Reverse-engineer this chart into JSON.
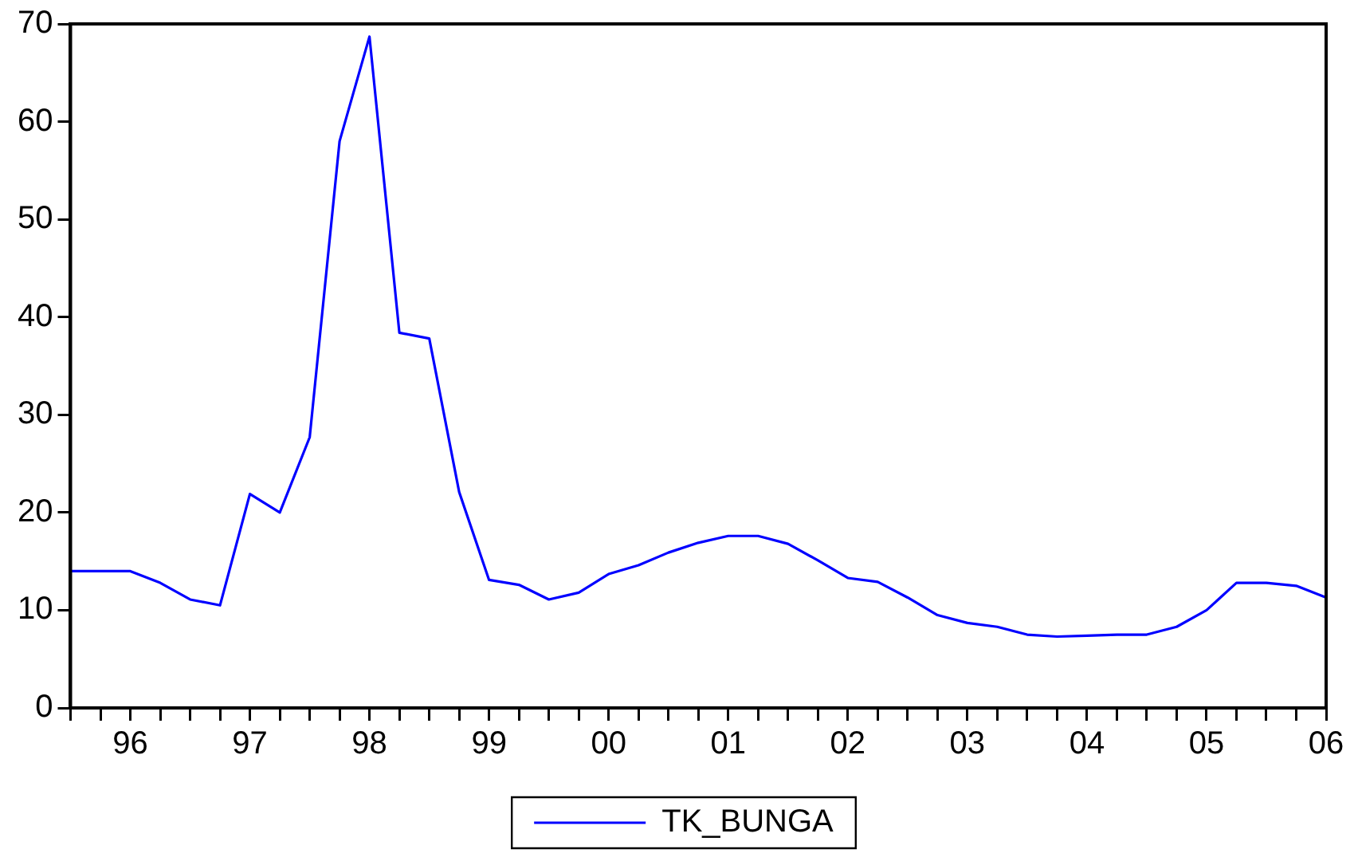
{
  "chart_data": {
    "type": "line",
    "categories": [
      null,
      null,
      "96",
      null,
      null,
      null,
      "97",
      null,
      null,
      null,
      "98",
      null,
      null,
      null,
      "99",
      null,
      null,
      null,
      "00",
      null,
      null,
      null,
      "01",
      null,
      null,
      null,
      "02",
      null,
      null,
      null,
      "03",
      null,
      null,
      null,
      "04",
      null,
      null,
      null,
      "05",
      null,
      null,
      null,
      "06"
    ],
    "series": [
      {
        "name": "TK_BUNGA",
        "color": "#0000ff",
        "values": [
          14.0,
          14.0,
          14.0,
          12.8,
          11.1,
          10.5,
          21.9,
          20.0,
          27.7,
          58.0,
          68.7,
          38.4,
          37.8,
          22.1,
          13.1,
          12.6,
          11.1,
          11.8,
          13.7,
          14.6,
          15.9,
          16.9,
          17.6,
          17.6,
          16.8,
          15.1,
          13.3,
          12.9,
          11.3,
          9.5,
          8.7,
          8.3,
          7.5,
          7.3,
          7.4,
          7.5,
          7.5,
          8.3,
          10.0,
          12.8,
          12.8,
          12.5,
          11.3
        ]
      }
    ],
    "ylim": [
      0,
      70
    ],
    "yticks": [
      0,
      10,
      20,
      30,
      40,
      50,
      60,
      70
    ],
    "grid": false,
    "legend": "bottom",
    "marker": "none",
    "line_style": "solid"
  }
}
